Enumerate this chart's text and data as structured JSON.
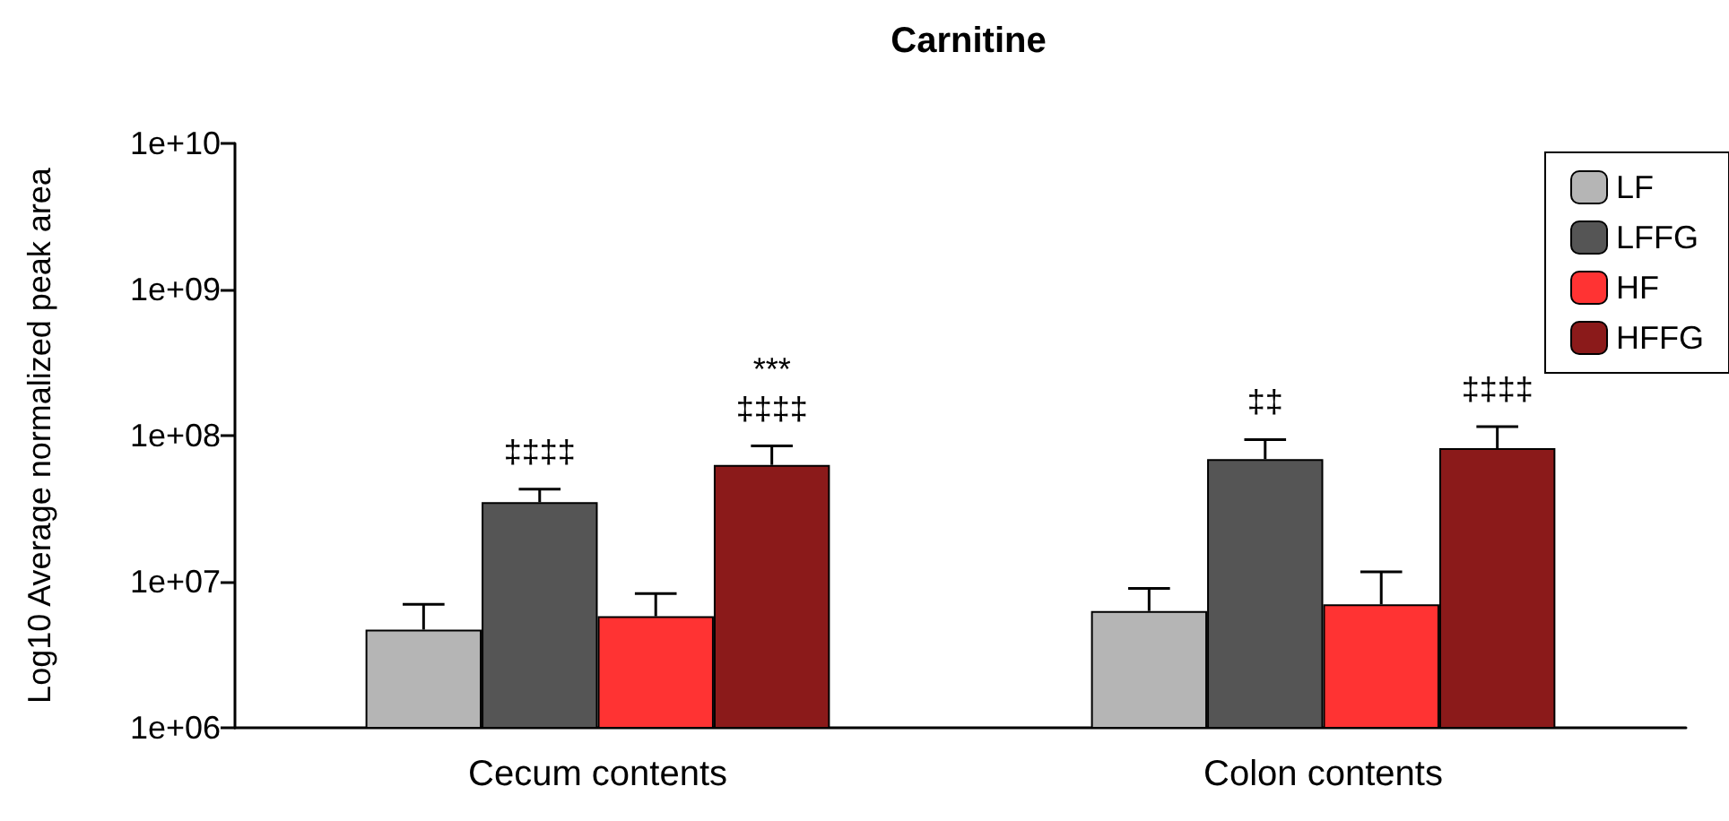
{
  "chart_data": {
    "type": "bar",
    "title": "Carnitine",
    "ylabel": "Log10 Average normalized peak area",
    "categories": [
      "Cecum contents",
      "Colon contents"
    ],
    "log": "y",
    "ylim": [
      1000000,
      10000000000
    ],
    "yticks": [
      {
        "value": 1000000,
        "label": "1e+06"
      },
      {
        "value": 10000000,
        "label": "1e+07"
      },
      {
        "value": 100000000,
        "label": "1e+08"
      },
      {
        "value": 1000000000,
        "label": "1e+09"
      },
      {
        "value": 10000000000,
        "label": "1e+10"
      }
    ],
    "legend": "top right",
    "series": [
      {
        "name": "LF",
        "color": "#b5b5b5",
        "values": [
          4700000,
          6300000
        ],
        "errors": [
          [
            4700000,
            7000000
          ],
          [
            6300000,
            9000000
          ]
        ]
      },
      {
        "name": "LFFG",
        "color": "#555555",
        "values": [
          35000000,
          69000000
        ],
        "errors": [
          [
            35000000,
            43000000
          ],
          [
            69000000,
            94000000
          ]
        ],
        "value_labels": [
          "‡‡‡‡",
          "‡‡"
        ]
      },
      {
        "name": "HF",
        "color": "#ff3333",
        "values": [
          5800000,
          7000000
        ],
        "errors": [
          [
            5800000,
            8300000
          ],
          [
            7000000,
            11700000
          ]
        ]
      },
      {
        "name": "HFFG",
        "color": "#8b1a1a",
        "values": [
          63000000,
          82000000
        ],
        "errors": [
          [
            63000000,
            85000000
          ],
          [
            82000000,
            115000000
          ]
        ],
        "value_labels": [
          "***\n‡‡‡‡",
          "‡‡‡‡"
        ]
      }
    ]
  }
}
